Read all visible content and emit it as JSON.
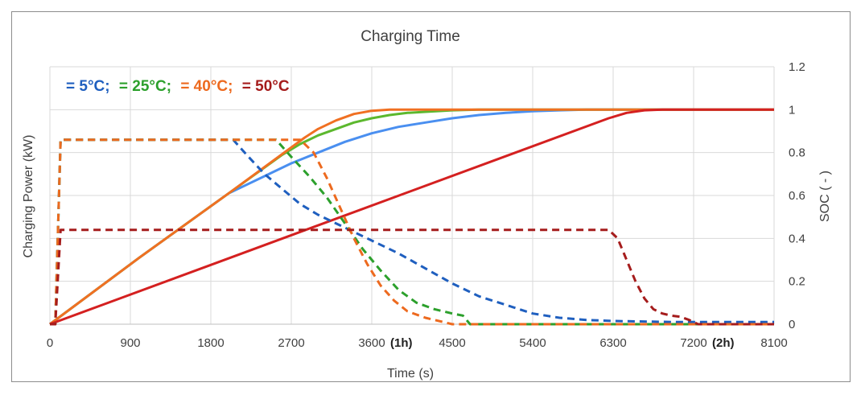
{
  "chart_data": {
    "type": "line",
    "title": "Charging Time",
    "xlabel": "Time (s)",
    "ylabel_left": "Charging Power (kW)",
    "ylabel_right": "SOC ( - )",
    "xlim": [
      0,
      8100
    ],
    "ylim": [
      0,
      1.2
    ],
    "x_ticks": [
      0,
      900,
      1800,
      2700,
      3600,
      4500,
      5400,
      6300,
      7200,
      8100
    ],
    "x_tick_labels": [
      "0",
      "900",
      "1800",
      "2700",
      "3600",
      "4500",
      "5400",
      "6300",
      "7200",
      "8100"
    ],
    "x_tick_annotations": [
      {
        "x": 3600,
        "text": "(1h)"
      },
      {
        "x": 7200,
        "text": "(2h)"
      }
    ],
    "y_ticks": [
      0,
      0.2,
      0.4,
      0.6,
      0.8,
      1,
      1.2
    ],
    "y_tick_labels": [
      "0",
      "0.2",
      "0.4",
      "0.6",
      "0.8",
      "1",
      "1.2"
    ],
    "legend": [
      {
        "label": "= 5°C;",
        "color": "#1f5fbf"
      },
      {
        "label": "= 25°C;",
        "color": "#2ca02c"
      },
      {
        "label": "= 40°C;",
        "color": "#ed6a1f"
      },
      {
        "label": "= 50°C",
        "color": "#a51c1c"
      }
    ],
    "series": [
      {
        "name": "5°C SOC",
        "style": "solid",
        "color": "#4a8ff0",
        "x": [
          0,
          1000,
          2000,
          2400,
          2700,
          3000,
          3300,
          3600,
          3900,
          4200,
          4500,
          4800,
          5100,
          5400,
          5700,
          6000,
          6300,
          7000,
          8100
        ],
        "y": [
          0,
          0.31,
          0.61,
          0.69,
          0.75,
          0.8,
          0.85,
          0.89,
          0.92,
          0.94,
          0.96,
          0.975,
          0.985,
          0.993,
          0.997,
          1.0,
          1.0,
          1.0,
          1.0
        ]
      },
      {
        "name": "25°C SOC",
        "style": "solid",
        "color": "#5cb82e",
        "x": [
          0,
          1000,
          2000,
          2600,
          2800,
          3000,
          3200,
          3400,
          3600,
          3800,
          4000,
          4200,
          4500,
          4800,
          5200,
          8100
        ],
        "y": [
          0,
          0.31,
          0.61,
          0.79,
          0.84,
          0.88,
          0.91,
          0.94,
          0.96,
          0.975,
          0.985,
          0.99,
          0.997,
          1.0,
          1.0,
          1.0
        ]
      },
      {
        "name": "40°C SOC",
        "style": "solid",
        "color": "#f07022",
        "x": [
          0,
          1000,
          2000,
          2850,
          3000,
          3200,
          3400,
          3600,
          3800,
          4000,
          4300,
          8100
        ],
        "y": [
          0,
          0.31,
          0.61,
          0.87,
          0.91,
          0.95,
          0.98,
          0.995,
          1.0,
          1.0,
          1.0,
          1.0
        ]
      },
      {
        "name": "50°C SOC",
        "style": "solid",
        "color": "#d42020",
        "x": [
          0,
          6250,
          6450,
          6650,
          6850,
          7200,
          8100
        ],
        "y": [
          0,
          0.96,
          0.985,
          0.997,
          1.0,
          1.0,
          1.0
        ]
      },
      {
        "name": "5°C Power",
        "style": "dashed",
        "color": "#1f5fbf",
        "x": [
          0,
          60,
          120,
          2050,
          2200,
          2400,
          2600,
          2800,
          3000,
          3300,
          3600,
          3900,
          4200,
          4500,
          4800,
          5100,
          5400,
          5700,
          6000,
          6300,
          7000,
          8100
        ],
        "y": [
          0,
          0,
          0.86,
          0.86,
          0.79,
          0.7,
          0.63,
          0.56,
          0.51,
          0.45,
          0.39,
          0.33,
          0.26,
          0.19,
          0.13,
          0.09,
          0.05,
          0.03,
          0.02,
          0.015,
          0.01,
          0.01
        ]
      },
      {
        "name": "25°C Power",
        "style": "dashed",
        "color": "#2ca02c",
        "x": [
          0,
          60,
          120,
          2530,
          2700,
          2900,
          3100,
          3300,
          3500,
          3700,
          3900,
          4100,
          4300,
          4500,
          4620,
          4700,
          8100
        ],
        "y": [
          0,
          0,
          0.86,
          0.86,
          0.78,
          0.69,
          0.59,
          0.47,
          0.35,
          0.25,
          0.16,
          0.1,
          0.07,
          0.05,
          0.04,
          0.0,
          0.0
        ]
      },
      {
        "name": "40°C Power",
        "style": "dashed",
        "color": "#ed6a1f",
        "x": [
          0,
          60,
          120,
          2800,
          2950,
          3100,
          3250,
          3400,
          3550,
          3700,
          3850,
          4000,
          4200,
          4400,
          4500,
          8100
        ],
        "y": [
          0,
          0,
          0.86,
          0.86,
          0.8,
          0.68,
          0.54,
          0.4,
          0.28,
          0.18,
          0.11,
          0.06,
          0.03,
          0.01,
          0.0,
          0.0
        ]
      },
      {
        "name": "50°C Power",
        "style": "dashed",
        "color": "#a51c1c",
        "x": [
          0,
          60,
          120,
          6250,
          6350,
          6450,
          6550,
          6650,
          6750,
          6850,
          6950,
          7050,
          7150,
          7250,
          8100
        ],
        "y": [
          0,
          0,
          0.44,
          0.44,
          0.4,
          0.3,
          0.2,
          0.12,
          0.07,
          0.05,
          0.04,
          0.035,
          0.02,
          0.0,
          0.0
        ]
      }
    ]
  }
}
